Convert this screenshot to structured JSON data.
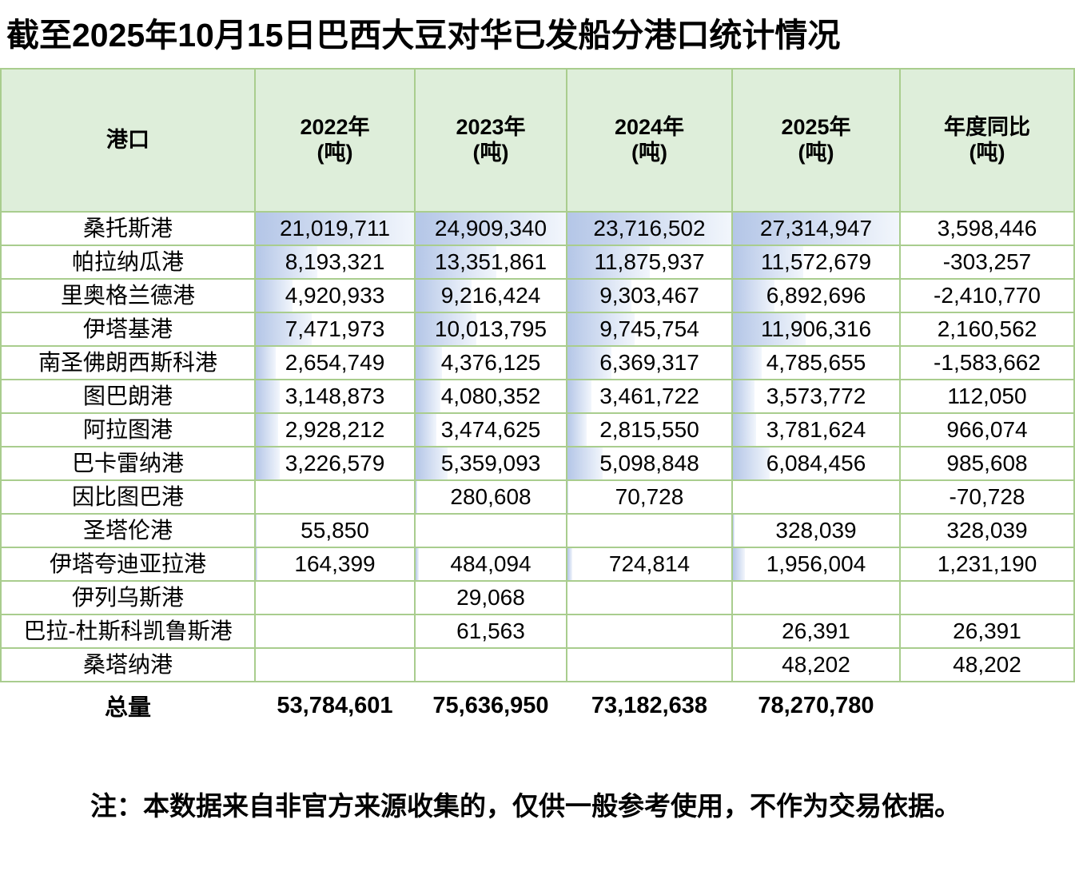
{
  "title": "截至2025年10月15日巴西大豆对华已发船分港口统计情况",
  "header": {
    "port": "港口",
    "cols": [
      "2022年\n(吨)",
      "2023年\n(吨)",
      "2024年\n(吨)",
      "2025年\n(吨)",
      "年度同比\n(吨)"
    ]
  },
  "rows": [
    {
      "port": "桑托斯港",
      "values": [
        "21,019,711",
        "24,909,340",
        "23,716,502",
        "27,314,947",
        "3,598,446"
      ]
    },
    {
      "port": "帕拉纳瓜港",
      "values": [
        "8,193,321",
        "13,351,861",
        "11,875,937",
        "11,572,679",
        "-303,257"
      ]
    },
    {
      "port": "里奥格兰德港",
      "values": [
        "4,920,933",
        "9,216,424",
        "9,303,467",
        "6,892,696",
        "-2,410,770"
      ]
    },
    {
      "port": "伊塔基港",
      "values": [
        "7,471,973",
        "10,013,795",
        "9,745,754",
        "11,906,316",
        "2,160,562"
      ]
    },
    {
      "port": "南圣佛朗西斯科港",
      "values": [
        "2,654,749",
        "4,376,125",
        "6,369,317",
        "4,785,655",
        "-1,583,662"
      ]
    },
    {
      "port": "图巴朗港",
      "values": [
        "3,148,873",
        "4,080,352",
        "3,461,722",
        "3,573,772",
        "112,050"
      ]
    },
    {
      "port": "阿拉图港",
      "values": [
        "2,928,212",
        "3,474,625",
        "2,815,550",
        "3,781,624",
        "966,074"
      ]
    },
    {
      "port": "巴卡雷纳港",
      "values": [
        "3,226,579",
        "5,359,093",
        "5,098,848",
        "6,084,456",
        "985,608"
      ]
    },
    {
      "port": "因比图巴港",
      "values": [
        "",
        "280,608",
        "70,728",
        "",
        "-70,728"
      ]
    },
    {
      "port": "圣塔伦港",
      "values": [
        "55,850",
        "",
        "",
        "328,039",
        "328,039"
      ]
    },
    {
      "port": "伊塔夸迪亚拉港",
      "values": [
        "164,399",
        "484,094",
        "724,814",
        "1,956,004",
        "1,231,190"
      ]
    },
    {
      "port": "伊列乌斯港",
      "values": [
        "",
        "29,068",
        "",
        "",
        ""
      ]
    },
    {
      "port": "巴拉-杜斯科凯鲁斯港",
      "values": [
        "",
        "61,563",
        "",
        "26,391",
        "26,391"
      ]
    },
    {
      "port": "桑塔纳港",
      "values": [
        "",
        "",
        "",
        "48,202",
        "48,202"
      ]
    }
  ],
  "total": {
    "label": "总量",
    "values": [
      "53,784,601",
      "75,636,950",
      "73,182,638",
      "78,270,780",
      ""
    ]
  },
  "note": "注：本数据来自非官方来源收集的，仅供一般参考使用，不作为交易依据。",
  "colors": {
    "header_bg": "#deeeda",
    "grid_border": "#a9cd8e",
    "data_bar": "#b4c6e7"
  },
  "chart_data": {
    "type": "table",
    "title": "截至2025年10月15日巴西大豆对华已发船分港口统计情况",
    "columns": [
      "港口",
      "2022年(吨)",
      "2023年(吨)",
      "2024年(吨)",
      "2025年(吨)",
      "年度同比(吨)"
    ],
    "categories": [
      "桑托斯港",
      "帕拉纳瓜港",
      "里奥格兰德港",
      "伊塔基港",
      "南圣佛朗西斯科港",
      "图巴朗港",
      "阿拉图港",
      "巴卡雷纳港",
      "因比图巴港",
      "圣塔伦港",
      "伊塔夸迪亚拉港",
      "伊列乌斯港",
      "巴拉-杜斯科凯鲁斯港",
      "桑塔纳港"
    ],
    "series": [
      {
        "name": "2022年(吨)",
        "values": [
          21019711,
          8193321,
          4920933,
          7471973,
          2654749,
          3148873,
          2928212,
          3226579,
          null,
          55850,
          164399,
          null,
          null,
          null
        ]
      },
      {
        "name": "2023年(吨)",
        "values": [
          24909340,
          13351861,
          9216424,
          10013795,
          4376125,
          4080352,
          3474625,
          5359093,
          280608,
          null,
          484094,
          29068,
          61563,
          null
        ]
      },
      {
        "name": "2024年(吨)",
        "values": [
          23716502,
          11875937,
          9303467,
          9745754,
          6369317,
          3461722,
          2815550,
          5098848,
          70728,
          null,
          724814,
          null,
          null,
          null
        ]
      },
      {
        "name": "2025年(吨)",
        "values": [
          27314947,
          11572679,
          6892696,
          11906316,
          4785655,
          3573772,
          3781624,
          6084456,
          null,
          328039,
          1956004,
          null,
          26391,
          48202
        ]
      },
      {
        "name": "年度同比(吨)",
        "values": [
          3598446,
          -303257,
          -2410770,
          2160562,
          -1583662,
          112050,
          966074,
          985608,
          -70728,
          328039,
          1231190,
          null,
          26391,
          48202
        ]
      }
    ],
    "totals": {
      "label": "总量",
      "values": [
        53784601,
        75636950,
        73182638,
        78270780,
        null
      ]
    },
    "note": "注：本数据来自非官方来源收集的，仅供一般参考使用，不作为交易依据。",
    "layout": {
      "data_bars": "per-year-column, scaled 0 to column max, light blue gradient",
      "grid": true
    }
  }
}
